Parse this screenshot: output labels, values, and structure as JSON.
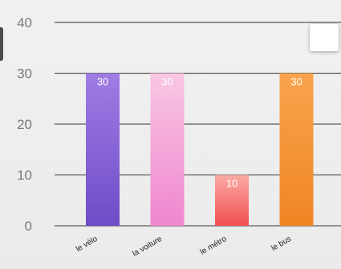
{
  "chart_data": {
    "type": "bar",
    "categories": [
      "le vélo",
      "la voiture",
      "le métro",
      "le bus"
    ],
    "values": [
      30,
      30,
      10,
      30
    ],
    "data_labels": [
      "30",
      "30",
      "10",
      "30"
    ],
    "ylim": [
      0,
      40
    ],
    "yticks": [
      0,
      10,
      20,
      30,
      40
    ],
    "ytick_labels": [
      "0",
      "10",
      "20",
      "30",
      "40"
    ],
    "grid": true,
    "legend": "top-right",
    "colors": [
      [
        "#a07ce4",
        "#6e4cc7"
      ],
      [
        "#f9c7e3",
        "#ef86cf"
      ],
      [
        "#fbaaa5",
        "#f04f4f"
      ],
      [
        "#f9a44e",
        "#ef8523"
      ]
    ],
    "axis_color": "#5a5a5a",
    "tick_label_color": "#777777",
    "data_label_color": "#ffffff"
  }
}
